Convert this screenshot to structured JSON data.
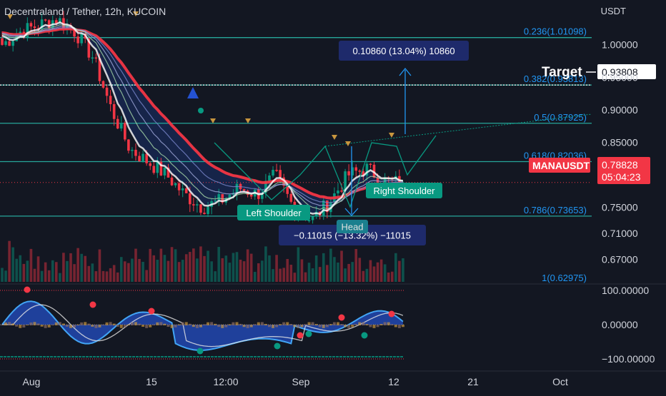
{
  "header": {
    "symbol_title": "Decentraland / Tether, 12h, KUCOIN",
    "currency": "USDT"
  },
  "price_axis": {
    "ticks": [
      "1.00000",
      "0.95000",
      "0.90000",
      "0.85000",
      "0.75000",
      "0.71000",
      "0.67000"
    ],
    "tick_values": [
      1.0,
      0.95,
      0.9,
      0.85,
      0.75,
      0.71,
      0.67
    ]
  },
  "indicator_axis": {
    "ticks": [
      "100.00000",
      "0.00000",
      "−100.00000"
    ],
    "tick_values": [
      100,
      0,
      -100
    ]
  },
  "time_axis": {
    "labels": [
      "Aug",
      "15",
      "12:00",
      "Sep",
      "12",
      "21",
      "Oct"
    ]
  },
  "fibonacci": [
    {
      "label": "0.236(1.01098)",
      "value": 1.01098
    },
    {
      "label": "0.382(0.93813)",
      "value": 0.93813
    },
    {
      "label": "0.5(0.87925)",
      "value": 0.87925
    },
    {
      "label": "0.618(0.82036)",
      "value": 0.82036
    },
    {
      "label": "0.786(0.73653)",
      "value": 0.73653
    },
    {
      "label": "1(0.62975)",
      "value": 0.62975
    }
  ],
  "annotations": {
    "target_label": "Target",
    "target_price": "0.93808",
    "current_symbol": "MANAUSDT",
    "current_price": "0.78828",
    "countdown": "05:04:23",
    "measure_up": "0.10860 (13.04%) 10860",
    "measure_down": "−0.11015 (−13.32%) −11015",
    "left_shoulder": "Left Shoulder",
    "head": "Head",
    "right_shoulder": "Right Shoulder"
  },
  "colors": {
    "background": "#131722",
    "fib_line": "#26a69a",
    "fib_text": "#2196f3",
    "up_candle": "#089981",
    "down_candle": "#f23645",
    "ema_red": "#f23645",
    "ribbon": "#2962ff",
    "label_green": "#089981",
    "measure_box": "#1e2a6b",
    "target_line": "#ffffff"
  },
  "chart_data": {
    "type": "candlestick",
    "title": "Decentraland / Tether, 12h, KUCOIN",
    "ylabel": "USDT",
    "ylim": [
      0.63,
      1.06
    ],
    "x_labels": [
      "Aug",
      "15",
      "12:00",
      "Sep",
      "12",
      "21",
      "Oct"
    ],
    "series": [
      {
        "name": "MANAUSDT",
        "close_path": [
          1.0,
          1.02,
          1.03,
          1.04,
          1.02,
          0.98,
          0.9,
          0.84,
          0.82,
          0.8,
          0.77,
          0.75,
          0.76,
          0.78,
          0.77,
          0.8,
          0.75,
          0.73,
          0.76,
          0.8,
          0.81,
          0.79,
          0.788
        ]
      }
    ],
    "last_price": 0.78828,
    "target_price": 0.93808
  }
}
